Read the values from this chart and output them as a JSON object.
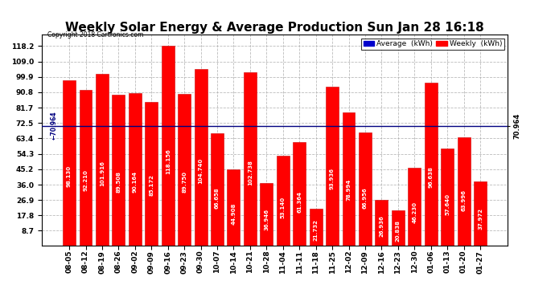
{
  "title": "Weekly Solar Energy & Average Production Sun Jan 28 16:18",
  "copyright": "Copyright 2018 Cartronics.com",
  "average_value": 70.964,
  "categories": [
    "08-05",
    "08-12",
    "08-19",
    "08-26",
    "09-02",
    "09-09",
    "09-16",
    "09-23",
    "09-30",
    "10-07",
    "10-14",
    "10-21",
    "10-28",
    "11-04",
    "11-11",
    "11-18",
    "11-25",
    "12-02",
    "12-09",
    "12-16",
    "12-23",
    "12-30",
    "01-06",
    "01-13",
    "01-20",
    "01-27"
  ],
  "values": [
    98.13,
    92.21,
    101.916,
    89.508,
    90.164,
    85.172,
    118.156,
    89.75,
    104.74,
    66.658,
    44.908,
    102.738,
    36.946,
    53.14,
    61.364,
    21.732,
    93.936,
    78.994,
    66.956,
    26.936,
    20.838,
    46.23,
    96.638,
    57.64,
    63.996,
    37.972
  ],
  "bar_color": "#ff0000",
  "bar_edge_color": "#cc0000",
  "avg_line_color": "#000080",
  "background_color": "#ffffff",
  "plot_bg_color": "#ffffff",
  "grid_color": "#aaaaaa",
  "yticks": [
    8.7,
    17.8,
    26.9,
    36.0,
    45.2,
    54.3,
    63.4,
    72.5,
    81.7,
    90.8,
    99.9,
    109.0,
    118.2
  ],
  "ylim_max": 125,
  "legend_avg_color": "#0000cc",
  "legend_weekly_color": "#ff0000",
  "title_fontsize": 11,
  "tick_fontsize": 6.5,
  "value_fontsize": 5.0,
  "bar_width": 0.78
}
